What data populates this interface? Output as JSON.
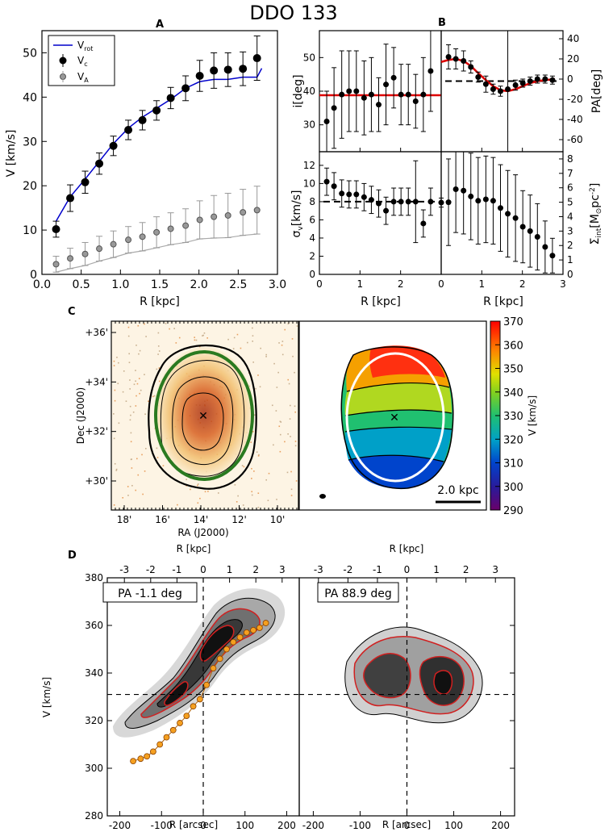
{
  "title": "DDO 133",
  "chart_data": [
    {
      "panel": "A",
      "type": "line",
      "xlabel": "R [kpc]",
      "ylabel": "V [km/s]",
      "xlim": [
        0,
        3
      ],
      "ylim": [
        0,
        55
      ],
      "xticks": [
        "0.0",
        "0.5",
        "1.0",
        "1.5",
        "2.0",
        "2.5",
        "3.0"
      ],
      "yticks": [
        "0",
        "10",
        "20",
        "30",
        "40",
        "50"
      ],
      "legend": {
        "placement": "top-left",
        "entries": [
          "V_rot",
          "V_c",
          "V_A"
        ]
      },
      "legend_labels": {
        "vrot": "V",
        "vrot_sub": "rot",
        "vc": "V",
        "vc_sub": "c",
        "va": "V",
        "va_sub": "A"
      },
      "series": [
        {
          "name": "V_rot",
          "x": [
            0.18,
            0.36,
            0.55,
            0.73,
            0.91,
            1.1,
            1.28,
            1.46,
            1.64,
            1.83,
            2.01,
            2.19,
            2.37,
            2.56,
            2.74,
            2.8
          ],
          "y": [
            12,
            17.5,
            21.5,
            25.5,
            29.5,
            33,
            35.5,
            37.5,
            39.5,
            42,
            43.5,
            44,
            44,
            44.5,
            44.5,
            46.5
          ]
        },
        {
          "name": "V_c",
          "x": [
            0.18,
            0.36,
            0.55,
            0.73,
            0.91,
            1.1,
            1.28,
            1.46,
            1.64,
            1.83,
            2.01,
            2.19,
            2.37,
            2.56,
            2.74
          ],
          "y": [
            10.2,
            17.2,
            20.8,
            25.0,
            29.0,
            32.6,
            34.8,
            37.0,
            39.8,
            42.0,
            44.8,
            46.0,
            46.2,
            46.4,
            48.8
          ],
          "err": [
            1.8,
            3.0,
            2.5,
            2.4,
            2.2,
            2.2,
            2.2,
            2.2,
            2.4,
            2.8,
            3.5,
            4.0,
            3.8,
            3.8,
            5.0
          ]
        },
        {
          "name": "V_A",
          "x": [
            0.18,
            0.36,
            0.55,
            0.73,
            0.91,
            1.1,
            1.28,
            1.46,
            1.64,
            1.83,
            2.01,
            2.19,
            2.37,
            2.56,
            2.74
          ],
          "y": [
            2.3,
            3.6,
            4.6,
            5.8,
            6.8,
            7.8,
            8.5,
            9.5,
            10.3,
            11.0,
            12.3,
            13.0,
            13.3,
            14.0,
            14.5
          ],
          "err": [
            1.8,
            2.3,
            2.6,
            2.8,
            3.0,
            3.0,
            3.2,
            3.5,
            3.6,
            3.8,
            4.3,
            4.8,
            5.0,
            5.2,
            5.4
          ]
        }
      ]
    },
    {
      "panel": "B",
      "type": "scatter",
      "xlabel": "R [kpc]",
      "xlim": [
        0,
        3
      ],
      "xticks": [
        "0",
        "1",
        "2",
        "3"
      ],
      "subplots": [
        {
          "name": "inclination",
          "ylabel": "i[deg]",
          "ylim": [
            22,
            58
          ],
          "yticks": [
            "30",
            "40",
            "50"
          ],
          "x": [
            0.18,
            0.36,
            0.55,
            0.73,
            0.91,
            1.1,
            1.28,
            1.46,
            1.64,
            1.83,
            2.01,
            2.19,
            2.37,
            2.56,
            2.74
          ],
          "y": [
            31,
            35,
            39,
            40,
            40,
            38,
            39,
            36,
            42,
            44,
            39,
            39,
            37,
            39,
            46
          ],
          "err": [
            9,
            12,
            13,
            12,
            12,
            11,
            11,
            8,
            12,
            9,
            9,
            9,
            8,
            11,
            12
          ],
          "fit": 38.8
        },
        {
          "name": "position-angle",
          "ylabel": "PA[deg]",
          "ylim": [
            -72,
            48
          ],
          "yticks": [
            "-60",
            "-40",
            "-20",
            "0",
            "20",
            "40"
          ],
          "x": [
            0.18,
            0.36,
            0.55,
            0.73,
            0.91,
            1.1,
            1.28,
            1.46,
            1.64,
            1.83,
            2.01,
            2.19,
            2.37,
            2.56,
            2.74
          ],
          "y": [
            22,
            20,
            18,
            12,
            2,
            -5,
            -10,
            -12,
            -10,
            -6,
            -4,
            -2,
            0,
            0,
            -1
          ],
          "err": [
            12,
            10,
            10,
            6,
            5,
            8,
            5,
            5,
            72,
            5,
            4,
            4,
            4,
            4,
            4
          ],
          "fit_x": [
            0,
            0.18,
            0.36,
            0.55,
            0.73,
            0.91,
            1.1,
            1.28,
            1.46,
            1.64,
            1.83,
            2.01,
            2.19,
            2.37,
            2.56,
            2.8
          ],
          "fit_y": [
            17,
            19,
            20,
            18,
            13,
            6,
            -1,
            -7,
            -11,
            -12,
            -10,
            -7,
            -4,
            -2,
            -1,
            0
          ],
          "dashed": -2
        },
        {
          "name": "dispersion",
          "ylabel": "sigma_v[km/s]",
          "ylabel_parts": {
            "sym": "σ",
            "sub": "v",
            "unit": "[km/s]"
          },
          "ylim": [
            0,
            13.5
          ],
          "yticks": [
            "0",
            "2",
            "4",
            "6",
            "8",
            "10",
            "12"
          ],
          "x": [
            0.18,
            0.36,
            0.55,
            0.73,
            0.91,
            1.1,
            1.28,
            1.46,
            1.64,
            1.83,
            2.01,
            2.19,
            2.37,
            2.56,
            2.74,
            3.0
          ],
          "y": [
            10.2,
            9.7,
            8.9,
            8.8,
            8.8,
            8.5,
            8.2,
            7.8,
            7.0,
            8.0,
            8.0,
            8.0,
            8.0,
            5.6,
            8.0,
            7.9
          ],
          "err": [
            1.5,
            1.5,
            1.5,
            1.5,
            1.5,
            1.5,
            1.5,
            1.5,
            1.5,
            1.5,
            1.5,
            1.5,
            4.5,
            1.5,
            1.5,
            0.5
          ],
          "dashed": 8.0
        },
        {
          "name": "surface-density",
          "ylabel": "Sigma_int[M_sun pc^-2]",
          "ylabel_parts": {
            "sym": "Σ",
            "sub": "int",
            "unit": "[M",
            "unit_sub": "⊙",
            "unit2": "pc",
            "sup": "-2",
            "close": "]"
          },
          "ylim": [
            0,
            8.5
          ],
          "yticks": [
            "0",
            "1",
            "2",
            "3",
            "4",
            "5",
            "6",
            "7",
            "8"
          ],
          "x": [
            0.18,
            0.36,
            0.55,
            0.73,
            0.91,
            1.1,
            1.28,
            1.46,
            1.64,
            1.83,
            2.01,
            2.19,
            2.37,
            2.56,
            2.74
          ],
          "y": [
            5.0,
            5.9,
            5.8,
            5.4,
            5.1,
            5.2,
            5.1,
            4.6,
            4.2,
            3.9,
            3.3,
            3.0,
            2.6,
            1.9,
            1.3
          ],
          "err": [
            3.0,
            3.0,
            3.0,
            3.0,
            3.0,
            3.0,
            3.0,
            3.0,
            3.0,
            3.0,
            2.5,
            2.5,
            2.3,
            1.8,
            1.2
          ]
        }
      ]
    },
    {
      "panel": "C",
      "type": "heatmap",
      "xlabel": "RA (J2000)",
      "ylabel": "Dec (J2000)",
      "xticks": [
        "18'",
        "16'",
        "14'",
        "12'",
        "10'"
      ],
      "yticks": [
        "+36'",
        "+34'",
        "+32'",
        "+30'"
      ],
      "colorbar": {
        "label": "V [km/s]",
        "ticks": [
          "290",
          "300",
          "310",
          "320",
          "330",
          "340",
          "350",
          "360",
          "370"
        ],
        "range": [
          290,
          370
        ]
      },
      "scalebar_label": "2.0 kpc"
    },
    {
      "panel": "D",
      "type": "heatmap",
      "xlabel": "R [arcsec]",
      "xlabel_top": "R [kpc]",
      "ylabel": "V [km/s]",
      "xlim": [
        -230,
        230
      ],
      "ylim": [
        280,
        380
      ],
      "xticks": [
        "-200",
        "-100",
        "0",
        "100",
        "200"
      ],
      "xticks_top": [
        "-3",
        "-2",
        "-1",
        "0",
        "1",
        "2",
        "3"
      ],
      "yticks": [
        "280",
        "300",
        "320",
        "340",
        "360",
        "380"
      ],
      "systemic_velocity": 331,
      "slices": [
        {
          "label": "PA -1.1 deg",
          "rotation_curve_x": [
            -168,
            -150,
            -135,
            -120,
            -104,
            -88,
            -72,
            -56,
            -40,
            -24,
            -8,
            8,
            24,
            40,
            56,
            72,
            88,
            104,
            120,
            135,
            150
          ],
          "rotation_curve_y": [
            303,
            304,
            305,
            307,
            310,
            313,
            316,
            319,
            322,
            326,
            329,
            335,
            342,
            346,
            350,
            353,
            355,
            357,
            358,
            359,
            361
          ]
        },
        {
          "label": "PA 88.9 deg"
        }
      ]
    }
  ]
}
